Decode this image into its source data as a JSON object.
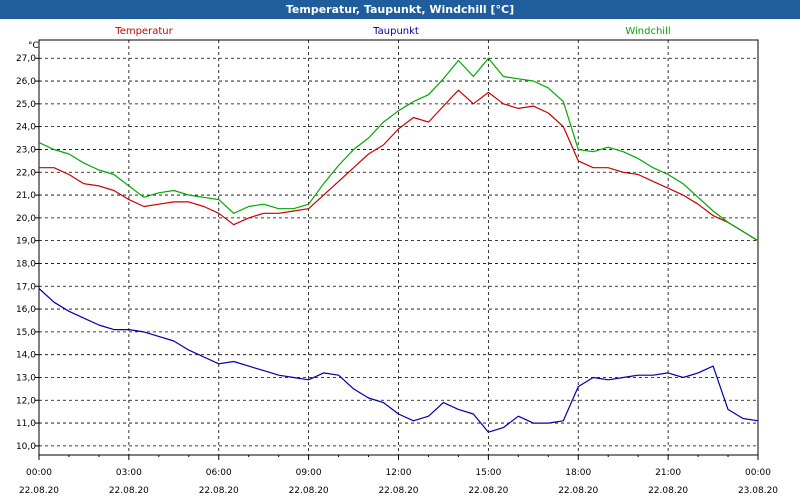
{
  "window": {
    "title": "Temperatur, Taupunkt, Windchill [°C]"
  },
  "colors": {
    "title_bar": "#1f5d9c",
    "temperature": "#cc0000",
    "dewpoint": "#0000aa",
    "windchill": "#00aa00",
    "grid": "#000000"
  },
  "chart_data": {
    "type": "line",
    "title": "Temperatur, Taupunkt, Windchill [°C]",
    "ylabel": "°C",
    "xlabel": "",
    "ylim": [
      9.6,
      27.8
    ],
    "yticks": [
      10,
      11,
      12,
      13,
      14,
      15,
      16,
      17,
      18,
      19,
      20,
      21,
      22,
      23,
      24,
      25,
      26,
      27
    ],
    "ytick_labels": [
      "10,0",
      "11,0",
      "12,0",
      "13,0",
      "14,0",
      "15,0",
      "16,0",
      "17,0",
      "18,0",
      "19,0",
      "20,0",
      "21,0",
      "22,0",
      "23,0",
      "24,0",
      "25,0",
      "26,0",
      "27,0"
    ],
    "xlim": [
      0,
      24
    ],
    "xticks": [
      0,
      3,
      6,
      9,
      12,
      15,
      18,
      21,
      24
    ],
    "xtick_times": [
      "00:00",
      "03:00",
      "06:00",
      "09:00",
      "12:00",
      "15:00",
      "18:00",
      "21:00",
      "00:00"
    ],
    "xtick_dates": [
      "22.08.20",
      "22.08.20",
      "22.08.20",
      "22.08.20",
      "22.08.20",
      "22.08.20",
      "22.08.20",
      "22.08.20",
      "23.08.20"
    ],
    "grid": true,
    "legend": [
      "Temperatur",
      "Taupunkt",
      "Windchill"
    ],
    "x": [
      0,
      0.5,
      1,
      1.5,
      2,
      2.5,
      3,
      3.5,
      4,
      4.5,
      5,
      5.5,
      6,
      6.5,
      7,
      7.5,
      8,
      8.5,
      9,
      9.5,
      10,
      10.5,
      11,
      11.5,
      12,
      12.5,
      13,
      13.5,
      14,
      14.5,
      15,
      15.5,
      16,
      16.5,
      17,
      17.5,
      18,
      18.5,
      19,
      19.5,
      20,
      20.5,
      21,
      21.5,
      22,
      22.5,
      23,
      23.5,
      24
    ],
    "series": [
      {
        "name": "Temperatur",
        "color": "#cc0000",
        "values": [
          22.2,
          22.2,
          21.9,
          21.5,
          21.4,
          21.2,
          20.8,
          20.5,
          20.6,
          20.7,
          20.7,
          20.5,
          20.2,
          19.7,
          20.0,
          20.2,
          20.2,
          20.3,
          20.4,
          21.0,
          21.6,
          22.2,
          22.8,
          23.2,
          23.9,
          24.4,
          24.2,
          24.9,
          25.6,
          25.0,
          25.5,
          25.0,
          24.8,
          24.9,
          24.6,
          24.0,
          22.5,
          22.2,
          22.2,
          22.0,
          21.9,
          21.6,
          21.3,
          21.0,
          20.6,
          20.1,
          19.8,
          19.4,
          19.0
        ]
      },
      {
        "name": "Taupunkt",
        "color": "#0000aa",
        "values": [
          16.9,
          16.3,
          15.9,
          15.6,
          15.3,
          15.1,
          15.1,
          15.0,
          14.8,
          14.6,
          14.2,
          13.9,
          13.6,
          13.7,
          13.5,
          13.3,
          13.1,
          13.0,
          12.9,
          13.2,
          13.1,
          12.5,
          12.1,
          11.9,
          11.4,
          11.1,
          11.3,
          11.9,
          11.6,
          11.4,
          10.6,
          10.8,
          11.3,
          11.0,
          11.0,
          11.1,
          12.6,
          13.0,
          12.9,
          13.0,
          13.1,
          13.1,
          13.2,
          13.0,
          13.2,
          13.5,
          11.6,
          11.2,
          11.1
        ]
      },
      {
        "name": "Windchill",
        "color": "#00aa00",
        "values": [
          23.3,
          23.0,
          22.8,
          22.4,
          22.1,
          21.9,
          21.4,
          20.9,
          21.1,
          21.2,
          21.0,
          20.9,
          20.8,
          20.2,
          20.5,
          20.6,
          20.4,
          20.4,
          20.6,
          21.5,
          22.3,
          23.0,
          23.5,
          24.2,
          24.7,
          25.1,
          25.4,
          26.1,
          26.9,
          26.2,
          27.0,
          26.2,
          26.1,
          26.0,
          25.7,
          25.1,
          23.0,
          22.9,
          23.1,
          22.9,
          22.6,
          22.2,
          21.9,
          21.5,
          20.9,
          20.3,
          19.8,
          19.4,
          19.0
        ]
      }
    ]
  }
}
